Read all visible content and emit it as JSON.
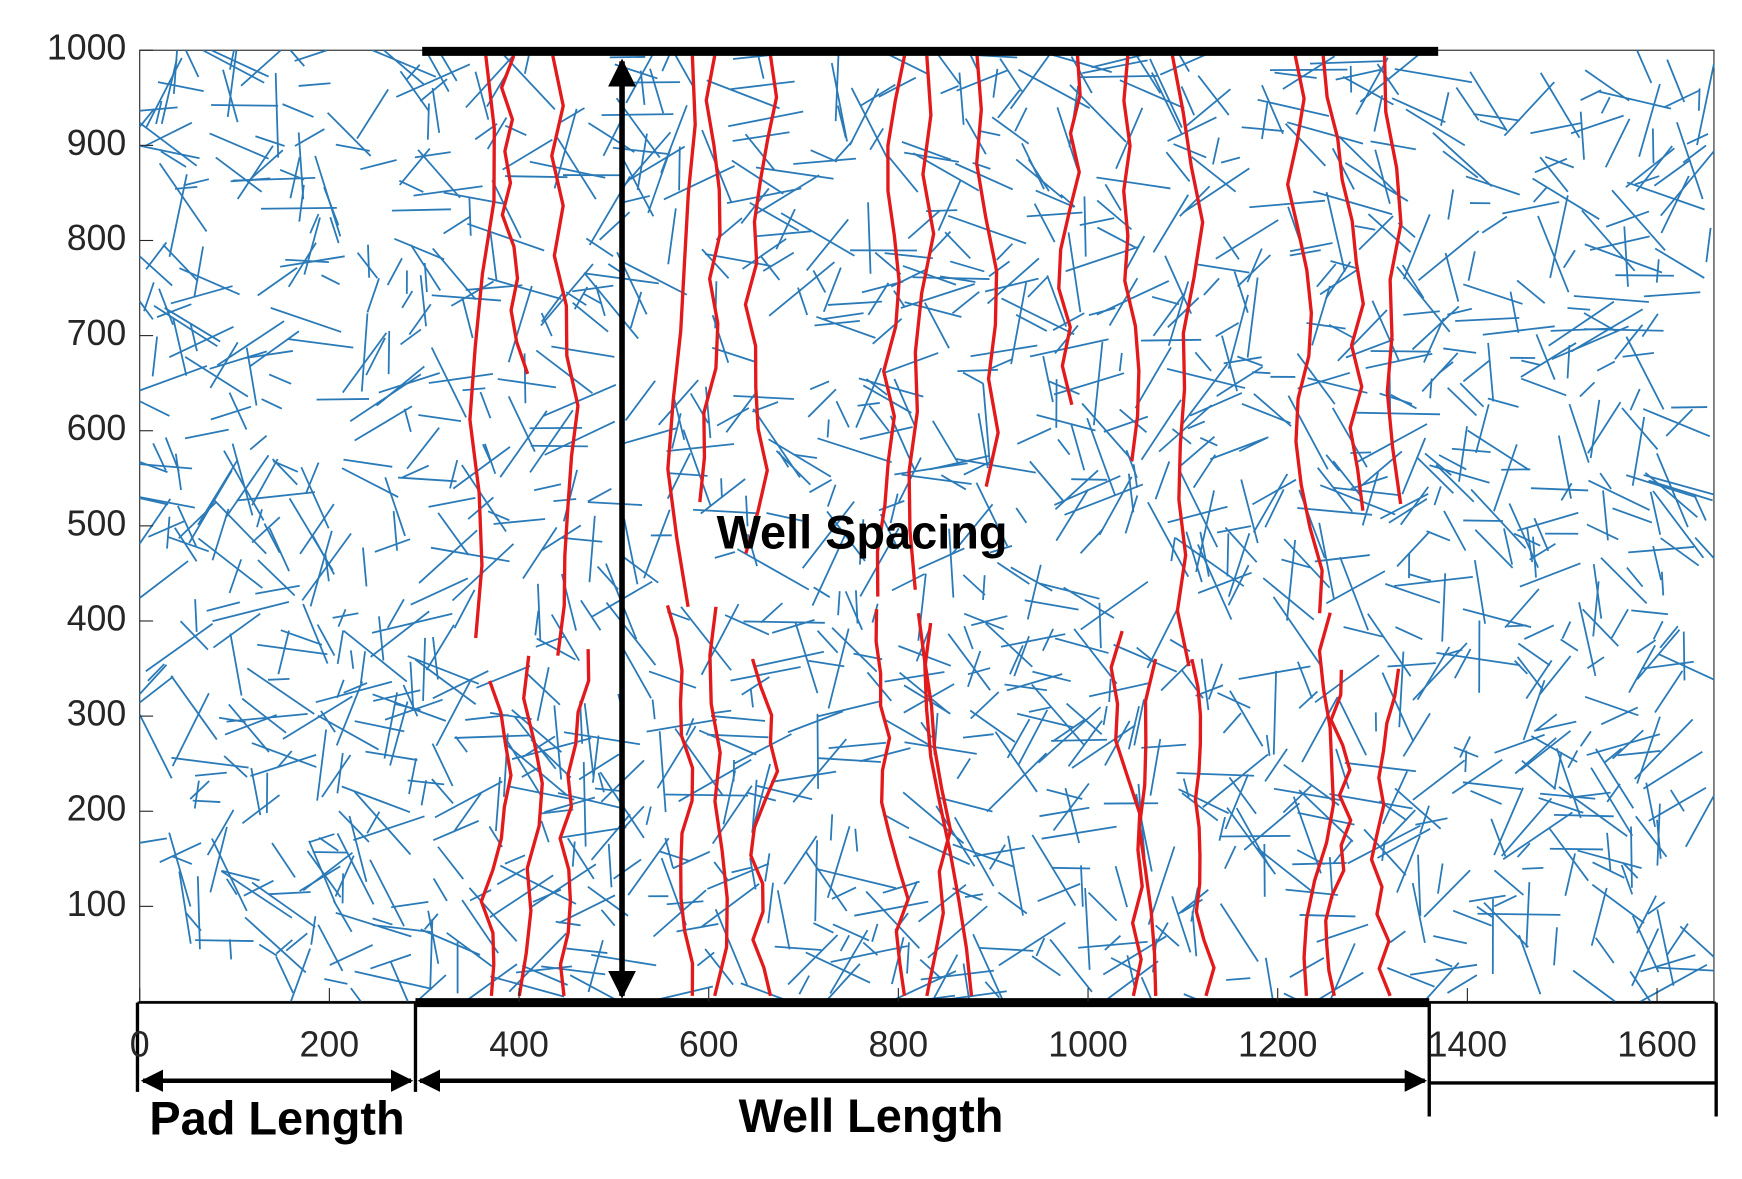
{
  "chart_data": {
    "type": "line",
    "annotations": [
      "Well Spacing",
      "Pad Length",
      "Well Length"
    ],
    "xlim": [
      0,
      1660
    ],
    "xticks": [
      0,
      200,
      400,
      600,
      800,
      1000,
      1200,
      1400,
      1600
    ],
    "ylim": [
      0,
      1000
    ],
    "yticks": [
      100,
      200,
      300,
      400,
      500,
      600,
      700,
      800,
      900,
      1000
    ],
    "grid": false
  }
}
